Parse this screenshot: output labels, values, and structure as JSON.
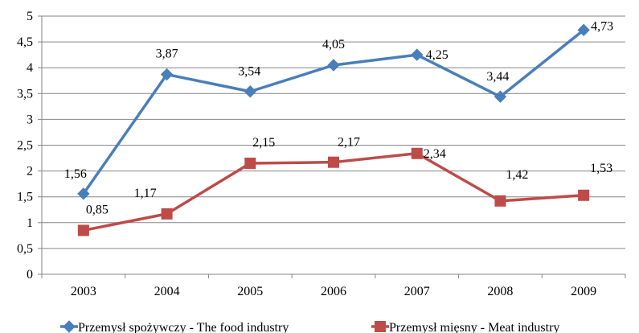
{
  "chart_data": {
    "type": "line",
    "categories": [
      "2003",
      "2004",
      "2005",
      "2006",
      "2007",
      "2008",
      "2009"
    ],
    "ylim": [
      0,
      5
    ],
    "yticks": [
      "0",
      "0,5",
      "1",
      "1,5",
      "2",
      "2,5",
      "3",
      "3,5",
      "4",
      "4,5",
      "5"
    ],
    "grid": true,
    "legend_position": "bottom",
    "series": [
      {
        "name": "Przemysł spożywczy - The food industry",
        "values": [
          1.56,
          3.87,
          3.54,
          4.05,
          4.25,
          3.44,
          4.73
        ],
        "labels": [
          "1,56",
          "3,87",
          "3,54",
          "4,05",
          "4,25",
          "3,44",
          "4,73"
        ],
        "color": "#4a7ebb",
        "marker": "diamond"
      },
      {
        "name": "Przemysł mięsny - Meat industry",
        "values": [
          0.85,
          1.17,
          2.15,
          2.17,
          2.34,
          1.42,
          1.53
        ],
        "labels": [
          "0,85",
          "1,17",
          "2,15",
          "2,17",
          "2,34",
          "1,42",
          "1,53"
        ],
        "color": "#be4b48",
        "marker": "square"
      }
    ]
  }
}
